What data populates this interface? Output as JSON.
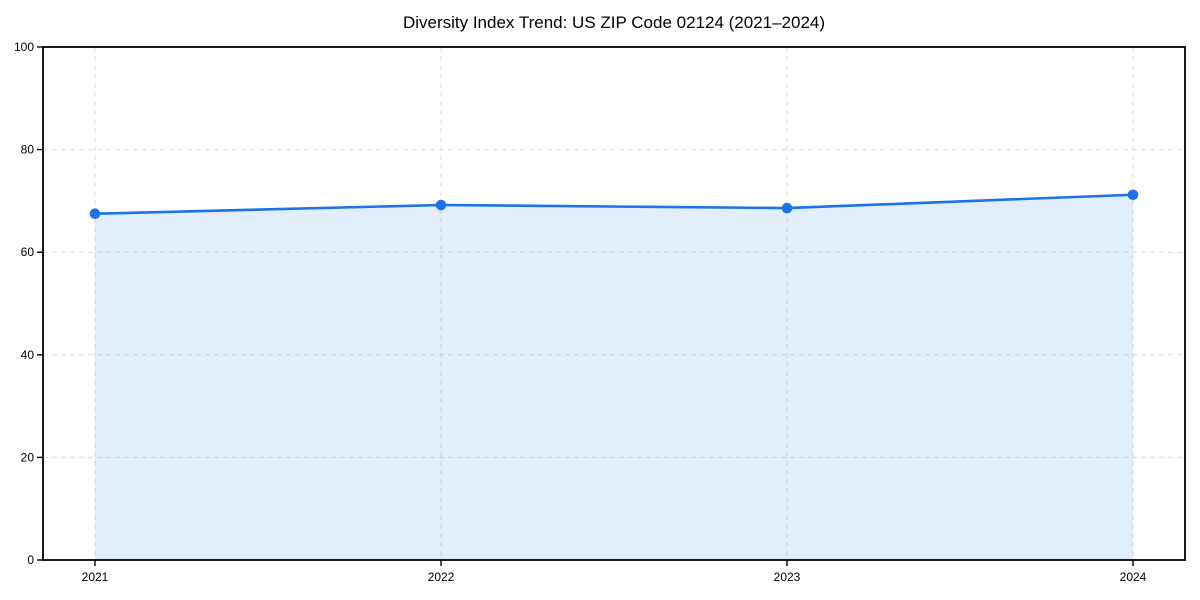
{
  "chart_data": {
    "type": "area",
    "title": "Diversity Index Trend: US ZIP Code 02124 (2021–2024)",
    "x": [
      "2021",
      "2022",
      "2023",
      "2024"
    ],
    "series": [
      {
        "name": "Diversity Index",
        "values": [
          67.5,
          69.2,
          68.6,
          71.2
        ]
      }
    ],
    "xlabel": "",
    "ylabel": "",
    "ylim": [
      0,
      100
    ],
    "yticks": [
      0,
      20,
      40,
      60,
      80,
      100
    ],
    "grid": "dashed",
    "legend": "none",
    "colors": {
      "line": "#1a73e8",
      "marker": "#1a73e8",
      "fill": "rgba(26,115,232,0.12)",
      "grid": "#dcdcdc",
      "axis": "#000000",
      "text": "#000000",
      "background": "#ffffff"
    }
  }
}
